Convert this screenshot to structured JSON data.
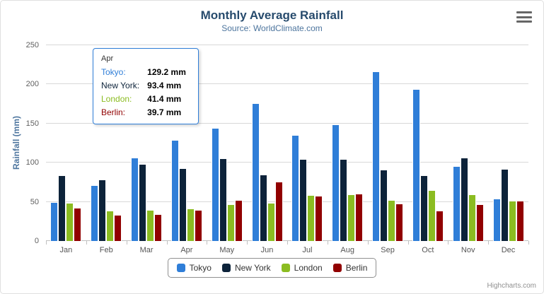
{
  "title": "Monthly Average Rainfall",
  "subtitle": "Source: WorldClimate.com",
  "y_axis_title": "Rainfall (mm)",
  "credit": "Highcharts.com",
  "tooltip": {
    "header": "Apr",
    "border_color": "#2f7ed8",
    "rows": [
      {
        "label": "Tokyo:",
        "value": "129.2 mm",
        "color": "#2f7ed8"
      },
      {
        "label": "New York:",
        "value": "93.4 mm",
        "color": "#0d233a"
      },
      {
        "label": "London:",
        "value": "41.4 mm",
        "color": "#8bbc21"
      },
      {
        "label": "Berlin:",
        "value": "39.7 mm",
        "color": "#910000"
      }
    ]
  },
  "legend": {
    "items": [
      {
        "label": "Tokyo",
        "color": "#2f7ed8"
      },
      {
        "label": "New York",
        "color": "#0d233a"
      },
      {
        "label": "London",
        "color": "#8bbc21"
      },
      {
        "label": "Berlin",
        "color": "#910000"
      }
    ]
  },
  "chart_data": {
    "type": "bar",
    "title": "Monthly Average Rainfall",
    "subtitle": "Source: WorldClimate.com",
    "xlabel": "",
    "ylabel": "Rainfall (mm)",
    "ylim": [
      0,
      250
    ],
    "y_ticks": [
      0,
      50,
      100,
      150,
      200,
      250
    ],
    "grid": true,
    "legend_position": "bottom",
    "categories": [
      "Jan",
      "Feb",
      "Mar",
      "Apr",
      "May",
      "Jun",
      "Jul",
      "Aug",
      "Sep",
      "Oct",
      "Nov",
      "Dec"
    ],
    "series": [
      {
        "name": "Tokyo",
        "color": "#2f7ed8",
        "values": [
          49.9,
          71.5,
          106.4,
          129.2,
          144.0,
          176.0,
          135.6,
          148.5,
          216.4,
          194.1,
          95.6,
          54.4
        ]
      },
      {
        "name": "New York",
        "color": "#0d233a",
        "values": [
          83.6,
          78.8,
          98.5,
          93.4,
          106.0,
          84.5,
          105.0,
          104.3,
          91.2,
          83.5,
          106.6,
          92.3
        ]
      },
      {
        "name": "London",
        "color": "#8bbc21",
        "values": [
          48.9,
          38.8,
          39.3,
          41.4,
          47.0,
          48.3,
          59.0,
          59.6,
          52.4,
          65.2,
          59.3,
          51.2
        ]
      },
      {
        "name": "Berlin",
        "color": "#910000",
        "values": [
          42.4,
          33.2,
          34.5,
          39.7,
          52.6,
          75.5,
          57.4,
          60.4,
          47.6,
          39.1,
          46.8,
          51.1
        ]
      }
    ]
  }
}
